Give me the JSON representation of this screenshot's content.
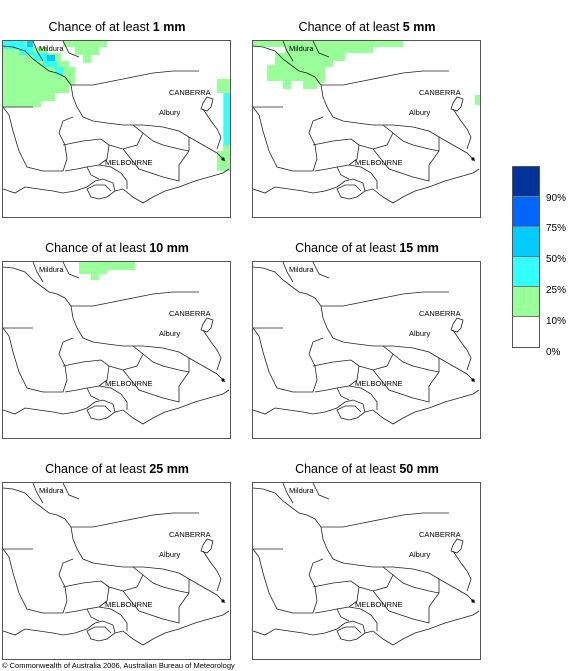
{
  "panels": [
    {
      "title_prefix": "Chance of at least ",
      "title_value": "1 mm"
    },
    {
      "title_prefix": "Chance of at least ",
      "title_value": "5 mm"
    },
    {
      "title_prefix": "Chance of at least ",
      "title_value": "10 mm"
    },
    {
      "title_prefix": "Chance of at least ",
      "title_value": "15 mm"
    },
    {
      "title_prefix": "Chance of at least ",
      "title_value": "25 mm"
    },
    {
      "title_prefix": "Chance of at least ",
      "title_value": "50 mm"
    }
  ],
  "places": {
    "mildura": "Mildura",
    "canberra": "CANBERRA",
    "albury": "Albury",
    "melbourne": "MELBOURNE"
  },
  "legend": {
    "colors": [
      "#003399",
      "#0066ff",
      "#00ccff",
      "#33ffff",
      "#99ff99",
      "#ffffff"
    ],
    "labels": [
      "90%",
      "75%",
      "50%",
      "25%",
      "10%",
      "0%"
    ]
  },
  "colors": {
    "green": "#99ff99",
    "cyan": "#33ffff",
    "blue": "#00ccff"
  },
  "copyright": "© Commonwealth of Australia 2006, Australian Bureau of Meteorology"
}
